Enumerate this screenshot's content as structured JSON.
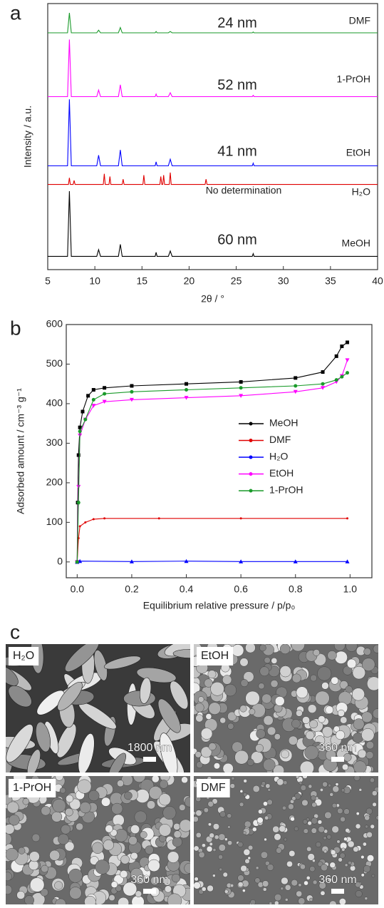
{
  "panel_labels": [
    "a",
    "b",
    "c"
  ],
  "chart_data": [
    {
      "type": "line",
      "xlabel": "2θ / °",
      "ylabel": "Intensity / a.u.",
      "xlim": [
        5,
        40
      ],
      "ylim": [
        0,
        100
      ],
      "xticks": [
        5,
        10,
        15,
        20,
        25,
        30,
        35,
        40
      ],
      "annotations": [
        "24 nm",
        "52 nm",
        "41 nm",
        "No determination",
        "60 nm"
      ],
      "series": [
        {
          "name": "DMF",
          "color": "#1a9a2a",
          "x": [
            5,
            7.1,
            7.3,
            7.5,
            10.2,
            10.4,
            10.6,
            12.5,
            12.7,
            12.9,
            16.4,
            16.5,
            16.6,
            17.8,
            18,
            18.2,
            26.7,
            26.8,
            26.9,
            40
          ],
          "values": [
            89,
            89,
            96.5,
            89,
            89,
            90,
            89,
            89,
            91,
            89,
            89,
            89.5,
            89,
            89,
            89.5,
            89,
            89,
            89.3,
            89,
            89
          ]
        },
        {
          "name": "1-PrOH",
          "color": "#ff00ff",
          "x": [
            5,
            7.1,
            7.3,
            7.5,
            10.2,
            10.4,
            10.6,
            12.5,
            12.7,
            12.9,
            16.4,
            16.5,
            16.6,
            17.8,
            18,
            18.2,
            26.7,
            26.8,
            26.9,
            40
          ],
          "values": [
            65,
            65,
            86.5,
            65,
            65,
            67.5,
            65,
            65,
            69.5,
            65,
            65,
            66,
            65,
            65,
            66.5,
            65,
            65,
            65.5,
            65,
            65
          ]
        },
        {
          "name": "EtOH",
          "color": "#0000ff",
          "x": [
            5,
            7.1,
            7.3,
            7.5,
            10.2,
            10.4,
            10.6,
            12.5,
            12.7,
            12.9,
            16.4,
            16.5,
            16.6,
            17.8,
            18,
            18.2,
            26.7,
            26.8,
            26.9,
            40
          ],
          "values": [
            39,
            39,
            64,
            39,
            39,
            43,
            39,
            39,
            45,
            39,
            39,
            40.5,
            39,
            39,
            41.5,
            39,
            39,
            40,
            39,
            39
          ]
        },
        {
          "name": "H₂O",
          "color": "#e00000",
          "x": [
            5,
            7.2,
            7.3,
            7.4,
            7.7,
            7.8,
            7.9,
            10.9,
            11,
            11.1,
            11.5,
            11.6,
            11.7,
            12.9,
            13,
            13.1,
            15.1,
            15.2,
            15.3,
            16.9,
            17,
            17.1,
            17.2,
            17.3,
            17.4,
            17.9,
            18,
            18.1,
            21.7,
            21.8,
            21.9,
            40
          ],
          "values": [
            32,
            32,
            34.5,
            32,
            32,
            33.5,
            32,
            32,
            36,
            32,
            32,
            35,
            32,
            32,
            34,
            32,
            32,
            35.5,
            32,
            32,
            35,
            32,
            32,
            35.5,
            32,
            32,
            36.5,
            32,
            32,
            34,
            32,
            32
          ]
        },
        {
          "name": "MeOH",
          "color": "#000000",
          "x": [
            5,
            7.1,
            7.3,
            7.5,
            10.2,
            10.4,
            10.6,
            12.5,
            12.7,
            12.9,
            16.4,
            16.5,
            16.6,
            17.8,
            18,
            18.2,
            26.7,
            26.8,
            26.9,
            40
          ],
          "values": [
            5,
            5,
            29.5,
            5,
            5,
            7.5,
            5,
            5,
            9.5,
            5,
            5,
            6.5,
            5,
            5,
            7,
            5,
            5,
            6,
            5,
            5
          ]
        }
      ]
    },
    {
      "type": "line",
      "xlabel": "Equilibrium relative pressure / p/p₀",
      "ylabel": "Adsorbed amount / cm⁻³ g⁻¹",
      "xlim": [
        -0.04,
        1.08
      ],
      "ylim": [
        -40,
        600
      ],
      "xticks": [
        {
          "value": 0,
          "label": "0.0"
        },
        0.2,
        0.4,
        0.6,
        0.8,
        {
          "value": 1,
          "label": "1.0"
        }
      ],
      "yticks": [
        0,
        100,
        200,
        300,
        400,
        500,
        600
      ],
      "legend": "center-right",
      "series": [
        {
          "name": "MeOH",
          "color": "#000000",
          "marker": "square",
          "x": [
            0,
            0.002,
            0.005,
            0.01,
            0.02,
            0.04,
            0.06,
            0.1,
            0.2,
            0.4,
            0.6,
            0.8,
            0.9,
            0.95,
            0.97,
            0.99
          ],
          "values": [
            0,
            150,
            270,
            340,
            380,
            420,
            435,
            440,
            445,
            450,
            455,
            465,
            480,
            520,
            545,
            555
          ]
        },
        {
          "name": "DMF",
          "color": "#e00000",
          "marker": "dot",
          "x": [
            0,
            0.005,
            0.01,
            0.03,
            0.06,
            0.1,
            0.3,
            0.6,
            0.99
          ],
          "values": [
            0,
            60,
            90,
            100,
            108,
            110,
            110,
            110,
            110
          ]
        },
        {
          "name": "H₂O",
          "color": "#0000ff",
          "marker": "triangle",
          "x": [
            0,
            0.01,
            0.2,
            0.4,
            0.6,
            0.8,
            0.99
          ],
          "values": [
            0,
            2,
            1,
            2,
            1,
            1,
            1
          ]
        },
        {
          "name": "EtOH",
          "color": "#ff00ff",
          "marker": "triangle-down",
          "x": [
            0,
            0.005,
            0.01,
            0.03,
            0.06,
            0.1,
            0.2,
            0.4,
            0.6,
            0.8,
            0.9,
            0.95,
            0.97,
            0.99
          ],
          "values": [
            0,
            190,
            320,
            360,
            395,
            405,
            410,
            415,
            420,
            430,
            440,
            455,
            470,
            510
          ]
        },
        {
          "name": "1-PrOH",
          "color": "#1a9a2a",
          "marker": "circle",
          "x": [
            0,
            0.005,
            0.01,
            0.03,
            0.06,
            0.1,
            0.2,
            0.4,
            0.6,
            0.8,
            0.9,
            0.95,
            0.97,
            0.99
          ],
          "values": [
            0,
            150,
            330,
            360,
            410,
            425,
            430,
            435,
            440,
            445,
            450,
            460,
            468,
            478
          ]
        }
      ]
    }
  ],
  "sem_images": [
    {
      "label": "H₂O",
      "scale_bar": "1800 nm"
    },
    {
      "label": "EtOH",
      "scale_bar": "360 nm"
    },
    {
      "label": "1-PrOH",
      "scale_bar": "360 nm"
    },
    {
      "label": "DMF",
      "scale_bar": "360 nm"
    }
  ]
}
